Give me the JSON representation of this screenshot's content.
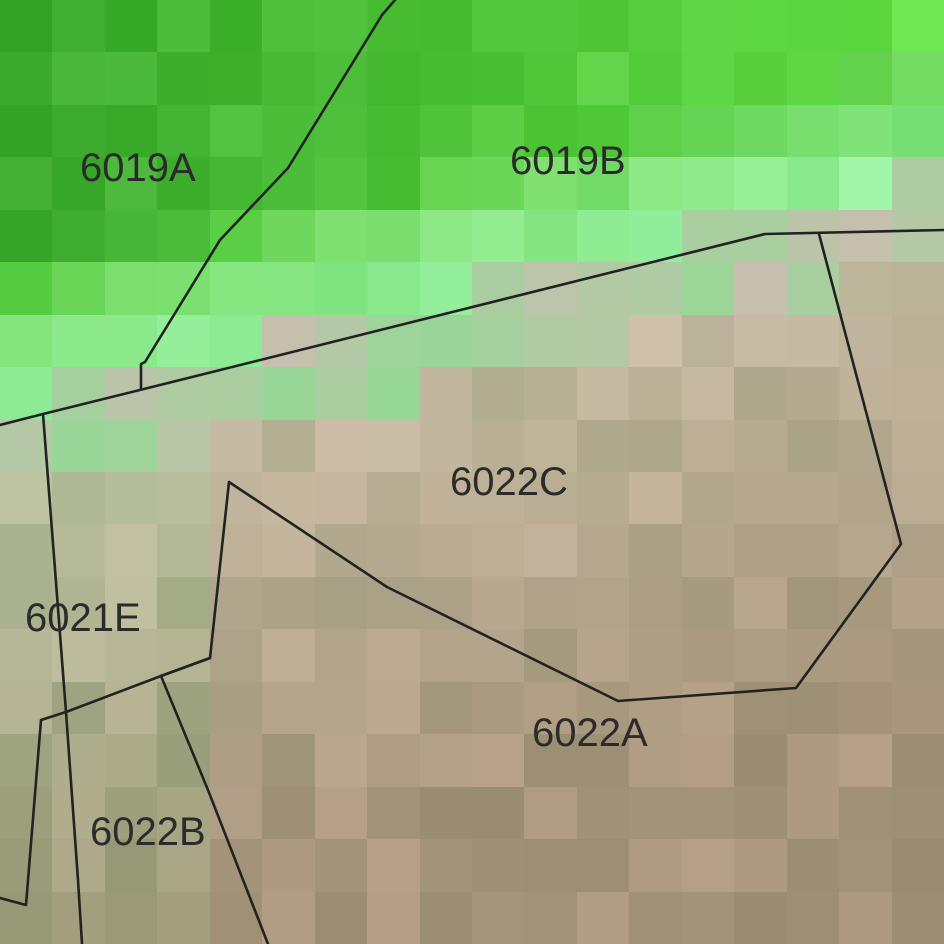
{
  "map": {
    "parcels": [
      {
        "id": "6019A",
        "label": "6019A"
      },
      {
        "id": "6019B",
        "label": "6019B"
      },
      {
        "id": "6022C",
        "label": "6022C"
      },
      {
        "id": "6021E",
        "label": "6021E"
      },
      {
        "id": "6022A",
        "label": "6022A"
      },
      {
        "id": "6022B",
        "label": "6022B"
      }
    ],
    "colors": {
      "boundary": "#222222",
      "label": "#2b2b2b",
      "vegetation_dark": "#3aa82a",
      "vegetation_light": "#8ee890",
      "soil": "#c2ae98"
    }
  }
}
